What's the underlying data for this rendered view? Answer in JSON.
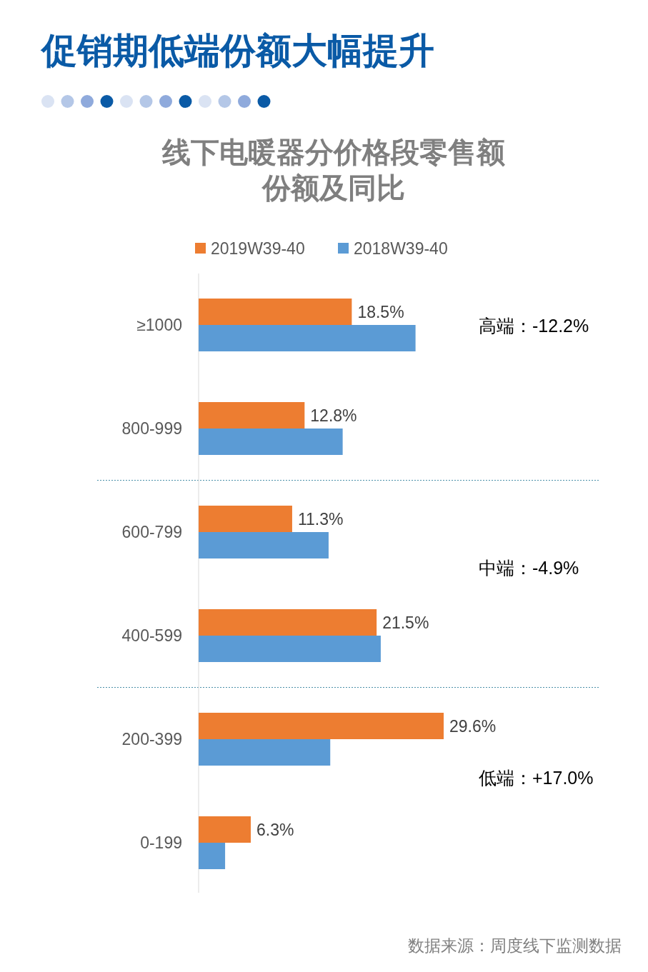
{
  "chart_data": {
    "type": "bar",
    "orientation": "horizontal",
    "title": "促销期低端份额大幅提升",
    "subtitle": "线下电暖器分价格段零售额份额及同比",
    "categories": [
      "≥1000",
      "800-999",
      "600-799",
      "400-599",
      "200-399",
      "0-199"
    ],
    "series": [
      {
        "name": "2019W39-40",
        "color": "#ed7d31",
        "values": [
          18.5,
          12.8,
          11.3,
          21.5,
          29.6,
          6.3
        ],
        "value_labels": [
          "18.5%",
          "12.8%",
          "11.3%",
          "21.5%",
          "29.6%",
          "6.3%"
        ]
      },
      {
        "name": "2018W39-40",
        "color": "#5b9bd5",
        "values": [
          26.2,
          17.4,
          15.7,
          22.0,
          15.9,
          3.2
        ]
      }
    ],
    "legend": "top",
    "annotations": [
      "高端：-12.2%",
      "中端：-4.9%",
      "低端：+17.0%",
      "数据来源：周度线下监测数据"
    ]
  }
}
